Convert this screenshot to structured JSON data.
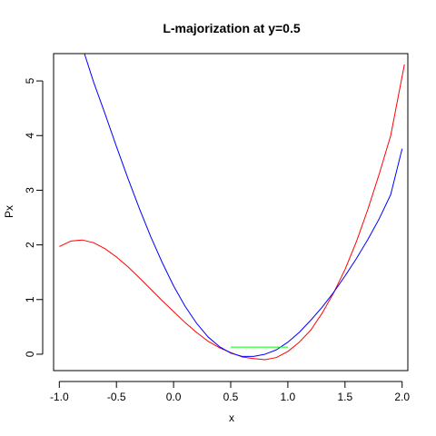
{
  "chart_data": {
    "type": "line",
    "title": "L-majorization at y=0.5",
    "xlabel": "x",
    "ylabel": "Px",
    "xlim": [
      -1.05,
      2.05
    ],
    "ylim": [
      -0.3,
      5.5
    ],
    "grid": false,
    "legend": "none",
    "x_ticks": [
      -1.0,
      -0.5,
      0.0,
      0.5,
      1.0,
      1.5,
      2.0
    ],
    "x_tick_labels": [
      "-1.0",
      "-0.5",
      "0.0",
      "0.5",
      "1.0",
      "1.5",
      "2.0"
    ],
    "y_ticks": [
      0,
      1,
      2,
      3,
      4,
      5
    ],
    "y_tick_labels": [
      "0",
      "1",
      "2",
      "3",
      "4",
      "5"
    ],
    "series": [
      {
        "color": "#ff0000",
        "x": [
          -1.0,
          -0.9,
          -0.8,
          -0.7,
          -0.6,
          -0.5,
          -0.4,
          -0.3,
          -0.2,
          -0.1,
          0.0,
          0.1,
          0.2,
          0.3,
          0.4,
          0.5,
          0.6,
          0.7,
          0.8,
          0.9,
          1.0,
          1.1,
          1.2,
          1.3,
          1.4,
          1.5,
          1.6,
          1.7,
          1.8,
          1.9,
          2.02
        ],
        "y": [
          1.97,
          2.07,
          2.09,
          2.04,
          1.93,
          1.78,
          1.6,
          1.4,
          1.19,
          0.98,
          0.78,
          0.58,
          0.4,
          0.24,
          0.12,
          0.03,
          -0.05,
          -0.08,
          -0.1,
          -0.06,
          0.05,
          0.22,
          0.44,
          0.75,
          1.12,
          1.55,
          2.06,
          2.65,
          3.3,
          4.0,
          5.3
        ]
      },
      {
        "color": "#0000ff",
        "x": [
          -0.78,
          -0.7,
          -0.6,
          -0.5,
          -0.4,
          -0.3,
          -0.2,
          -0.1,
          0.0,
          0.1,
          0.2,
          0.3,
          0.4,
          0.5,
          0.6,
          0.7,
          0.8,
          0.9,
          1.0,
          1.1,
          1.2,
          1.3,
          1.4,
          1.5,
          1.6,
          1.7,
          1.8,
          1.9,
          2.0
        ],
        "y": [
          5.5,
          4.98,
          4.4,
          3.8,
          3.22,
          2.67,
          2.15,
          1.68,
          1.25,
          0.88,
          0.57,
          0.32,
          0.14,
          0.02,
          -0.04,
          -0.04,
          0.0,
          0.08,
          0.22,
          0.4,
          0.62,
          0.86,
          1.13,
          1.43,
          1.75,
          2.1,
          2.48,
          2.92,
          3.76
        ]
      },
      {
        "color": "#00ff00",
        "x": [
          0.5,
          1.0
        ],
        "y": [
          0.13,
          0.13
        ]
      }
    ]
  }
}
